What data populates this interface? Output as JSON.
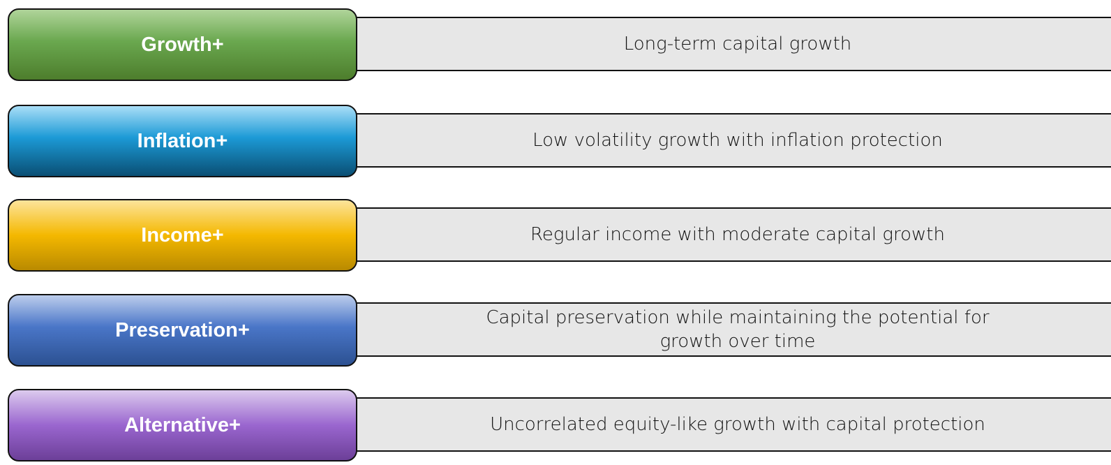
{
  "rows": [
    {
      "label": "Growth+",
      "description": "Long-term capital growth"
    },
    {
      "label": "Inflation+",
      "description": "Low volatility growth with inflation protection"
    },
    {
      "label": "Income+",
      "description": "Regular income with moderate capital growth"
    },
    {
      "label": "Preservation+",
      "description": "Capital preservation while maintaining the potential for growth over time"
    },
    {
      "label": "Alternative+",
      "description": "Uncorrelated equity-like growth with capital protection"
    }
  ]
}
